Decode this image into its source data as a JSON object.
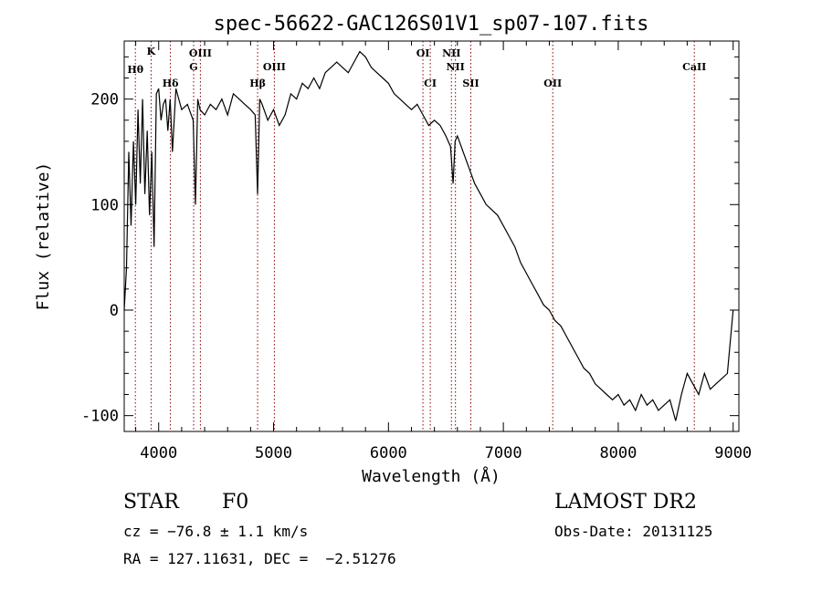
{
  "chart_data": {
    "type": "line",
    "title": "spec-56622-GAC126S01V1_sp07-107.fits",
    "xlabel": "Wavelength (Å)",
    "ylabel": "Flux (relative)",
    "xlim": [
      3700,
      9050
    ],
    "ylim": [
      -115,
      255
    ],
    "x_ticks": [
      4000,
      5000,
      6000,
      7000,
      8000,
      9000
    ],
    "y_ticks": [
      -100,
      0,
      100,
      200
    ],
    "grid": false,
    "line_color": "#000000",
    "marker_color": "#8b0000",
    "series": [
      {
        "x": [
          3700,
          3720,
          3740,
          3760,
          3780,
          3800,
          3820,
          3840,
          3860,
          3880,
          3900,
          3920,
          3940,
          3960,
          3980,
          4000,
          4020,
          4040,
          4060,
          4080,
          4100,
          4120,
          4150,
          4200,
          4250,
          4300,
          4320,
          4340,
          4360,
          4400,
          4450,
          4500,
          4550,
          4600,
          4650,
          4700,
          4750,
          4800,
          4840,
          4861,
          4880,
          4900,
          4950,
          5000,
          5050,
          5100,
          5150,
          5200,
          5250,
          5300,
          5350,
          5400,
          5450,
          5500,
          5550,
          5600,
          5650,
          5700,
          5750,
          5800,
          5850,
          5900,
          5950,
          6000,
          6050,
          6100,
          6150,
          6200,
          6250,
          6300,
          6350,
          6400,
          6450,
          6500,
          6540,
          6563,
          6580,
          6600,
          6650,
          6700,
          6750,
          6800,
          6850,
          6900,
          6950,
          7000,
          7050,
          7100,
          7150,
          7200,
          7250,
          7300,
          7350,
          7400,
          7450,
          7500,
          7550,
          7600,
          7650,
          7700,
          7750,
          7800,
          7850,
          7900,
          7950,
          8000,
          8050,
          8100,
          8150,
          8200,
          8250,
          8300,
          8350,
          8400,
          8450,
          8500,
          8550,
          8600,
          8650,
          8700,
          8750,
          8800,
          8850,
          8900,
          8950,
          9000
        ],
        "y": [
          0,
          40,
          150,
          80,
          160,
          100,
          190,
          120,
          200,
          110,
          170,
          90,
          150,
          60,
          205,
          210,
          180,
          195,
          200,
          170,
          200,
          150,
          210,
          190,
          195,
          180,
          100,
          200,
          190,
          185,
          195,
          190,
          200,
          185,
          205,
          200,
          195,
          190,
          185,
          110,
          200,
          195,
          180,
          190,
          175,
          185,
          205,
          200,
          215,
          210,
          220,
          210,
          225,
          230,
          235,
          230,
          225,
          235,
          245,
          240,
          230,
          225,
          220,
          215,
          205,
          200,
          195,
          190,
          195,
          185,
          175,
          180,
          175,
          165,
          155,
          120,
          160,
          165,
          150,
          135,
          120,
          110,
          100,
          95,
          90,
          80,
          70,
          60,
          45,
          35,
          25,
          15,
          5,
          0,
          -10,
          -15,
          -25,
          -35,
          -45,
          -55,
          -60,
          -70,
          -75,
          -80,
          -85,
          -80,
          -90,
          -85,
          -95,
          -80,
          -90,
          -85,
          -95,
          -90,
          -85,
          -105,
          -80,
          -60,
          -70,
          -80,
          -60,
          -75,
          -70,
          -65,
          -60,
          0
        ]
      }
    ],
    "lines": [
      {
        "label": "Hθ",
        "x": 3797
      },
      {
        "label": "K",
        "x": 3934
      },
      {
        "label": "Hδ",
        "x": 4102
      },
      {
        "label": "G",
        "x": 4304
      },
      {
        "label": "OIII",
        "x": 4363
      },
      {
        "label": "Hβ",
        "x": 4861
      },
      {
        "label": "OIII",
        "x": 5007
      },
      {
        "label": "OI",
        "x": 6300
      },
      {
        "label": "CI",
        "x": 6364
      },
      {
        "label": "NII",
        "x": 6548
      },
      {
        "label": "NII",
        "x": 6583
      },
      {
        "label": "SII",
        "x": 6717
      },
      {
        "label": "OII",
        "x": 7430
      },
      {
        "label": "CaII",
        "x": 8662
      }
    ]
  },
  "info": {
    "object_type": "STAR",
    "subclass": "F0",
    "survey": "LAMOST DR2",
    "cz": "cz = −76.8 ± 1.1 km/s",
    "obs_date": "Obs-Date: 20131125",
    "radec": "RA = 127.11631, DEC =  −2.51276"
  }
}
